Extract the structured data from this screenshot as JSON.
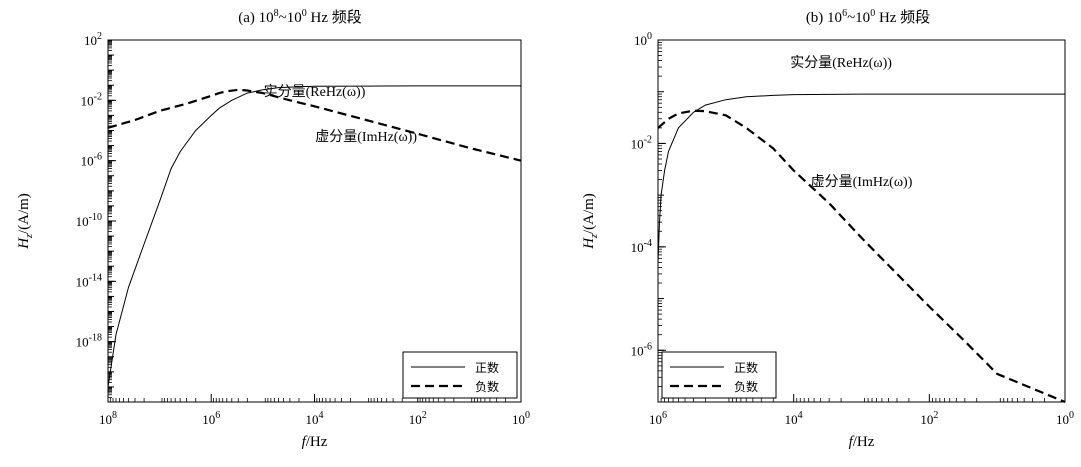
{
  "chart_data": [
    {
      "type": "line",
      "title": {
        "pre": "(a) 10",
        "sup1": "8",
        "mid": "~10",
        "sup2": "0",
        "post": " Hz 频段"
      },
      "xlabel": {
        "var": "f",
        "unit": "/Hz"
      },
      "ylabel": {
        "var": "H",
        "sub": "z",
        "unit": "/(A/m)"
      },
      "x_scale": "log",
      "x_reversed": true,
      "x_range": [
        100000000,
        1
      ],
      "y_scale": "log",
      "y_range": [
        1e-22,
        100
      ],
      "x_ticks": [
        {
          "value": 100000000,
          "base": "10",
          "exp": "8"
        },
        {
          "value": 1000000,
          "base": "10",
          "exp": "6"
        },
        {
          "value": 10000,
          "base": "10",
          "exp": "4"
        },
        {
          "value": 100,
          "base": "10",
          "exp": "2"
        },
        {
          "value": 1,
          "base": "10",
          "exp": "0"
        }
      ],
      "y_ticks": [
        {
          "value": 100,
          "base": "10",
          "exp": "2"
        },
        {
          "value": 0.01,
          "base": "10",
          "exp": "-2"
        },
        {
          "value": 1e-06,
          "base": "10",
          "exp": "-6"
        },
        {
          "value": 1e-10,
          "base": "10",
          "exp": "-10"
        },
        {
          "value": 1e-14,
          "base": "10",
          "exp": "-14"
        },
        {
          "value": 1e-18,
          "base": "10",
          "exp": "-18"
        }
      ],
      "annotations": [
        {
          "text": "实分量(ReHz(ω))",
          "x": 10000,
          "y": 0.02
        },
        {
          "text": "虚分量(ImHz(ω))",
          "x": 1000,
          "y": 2e-05
        }
      ],
      "legend": {
        "position": "bottom-right",
        "entries": [
          {
            "label": "正数",
            "style": "solid"
          },
          {
            "label": "负数",
            "style": "dashed"
          }
        ]
      },
      "series": [
        {
          "id": "real",
          "style": "solid",
          "points": [
            [
              100000000,
              1e-21
            ],
            [
              70000000,
              3e-18
            ],
            [
              40000000,
              4e-15
            ],
            [
              20000000,
              3e-12
            ],
            [
              10000000,
              2e-09
            ],
            [
              6000000,
              3e-07
            ],
            [
              4000000,
              4e-06
            ],
            [
              2000000,
              0.0001
            ],
            [
              1000000,
              0.001
            ],
            [
              700000,
              0.003
            ],
            [
              400000,
              0.01
            ],
            [
              200000,
              0.03
            ],
            [
              100000,
              0.05
            ],
            [
              50000,
              0.07
            ],
            [
              20000,
              0.08
            ],
            [
              10000,
              0.085
            ],
            [
              1000,
              0.088
            ],
            [
              100,
              0.09
            ],
            [
              10,
              0.09
            ],
            [
              1,
              0.09
            ]
          ]
        },
        {
          "id": "imag",
          "style": "dashed",
          "points": [
            [
              100000000,
              0.00015
            ],
            [
              30000000,
              0.0005
            ],
            [
              10000000,
              0.002
            ],
            [
              3000000,
              0.006
            ],
            [
              1000000,
              0.02
            ],
            [
              700000,
              0.03
            ],
            [
              500000,
              0.04
            ],
            [
              300000,
              0.05
            ],
            [
              200000,
              0.045
            ],
            [
              100000,
              0.03
            ],
            [
              30000,
              0.01
            ],
            [
              10000,
              0.004
            ],
            [
              1000,
              0.0005
            ],
            [
              100,
              6e-05
            ],
            [
              10,
              7e-06
            ],
            [
              1,
              1e-06
            ]
          ]
        }
      ]
    },
    {
      "type": "line",
      "title": {
        "pre": "(b) 10",
        "sup1": "6",
        "mid": "~10",
        "sup2": "0",
        "post": " Hz 频段"
      },
      "xlabel": {
        "var": "f",
        "unit": "/Hz"
      },
      "ylabel": {
        "var": "H",
        "sub": "z",
        "unit": "/(A/m)"
      },
      "x_scale": "log",
      "x_reversed": true,
      "x_range": [
        1000000,
        1
      ],
      "y_scale": "log",
      "y_range": [
        1e-07,
        1
      ],
      "x_ticks": [
        {
          "value": 1000000,
          "base": "10",
          "exp": "6"
        },
        {
          "value": 10000,
          "base": "10",
          "exp": "4"
        },
        {
          "value": 100,
          "base": "10",
          "exp": "2"
        },
        {
          "value": 1,
          "base": "10",
          "exp": "0"
        }
      ],
      "y_ticks": [
        {
          "value": 1,
          "base": "10",
          "exp": "0"
        },
        {
          "value": 0.01,
          "base": "10",
          "exp": "-2"
        },
        {
          "value": 0.0001,
          "base": "10",
          "exp": "-4"
        },
        {
          "value": 1e-06,
          "base": "10",
          "exp": "-6"
        }
      ],
      "annotations": [
        {
          "text": "实分量(ReHz(ω))",
          "x": 2000,
          "y": 0.3
        },
        {
          "text": "虚分量(ImHz(ω))",
          "x": 1000,
          "y": 0.0015
        }
      ],
      "legend": {
        "position": "bottom-left",
        "entries": [
          {
            "label": "正数",
            "style": "solid"
          },
          {
            "label": "负数",
            "style": "dashed"
          }
        ]
      },
      "series": [
        {
          "id": "real",
          "style": "solid",
          "points": [
            [
              1000000,
              5e-05
            ],
            [
              950000,
              0.0003
            ],
            [
              900000,
              0.001
            ],
            [
              800000,
              0.003
            ],
            [
              700000,
              0.007
            ],
            [
              500000,
              0.02
            ],
            [
              300000,
              0.04
            ],
            [
              200000,
              0.055
            ],
            [
              100000,
              0.07
            ],
            [
              50000,
              0.08
            ],
            [
              20000,
              0.085
            ],
            [
              10000,
              0.088
            ],
            [
              1000,
              0.09
            ],
            [
              100,
              0.09
            ],
            [
              10,
              0.09
            ],
            [
              1,
              0.09
            ]
          ]
        },
        {
          "id": "imag",
          "style": "dashed",
          "points": [
            [
              1000000,
              0.02
            ],
            [
              700000,
              0.03
            ],
            [
              500000,
              0.038
            ],
            [
              300000,
              0.043
            ],
            [
              200000,
              0.042
            ],
            [
              100000,
              0.035
            ],
            [
              50000,
              0.02
            ],
            [
              20000,
              0.008
            ],
            [
              10000,
              0.003
            ],
            [
              3000,
              0.0007
            ],
            [
              1000,
              0.00015
            ],
            [
              300,
              3e-05
            ],
            [
              100,
              7e-06
            ],
            [
              30,
              1.5e-06
            ],
            [
              10,
              3.5e-07
            ],
            [
              1,
              1e-07
            ]
          ]
        }
      ]
    }
  ]
}
